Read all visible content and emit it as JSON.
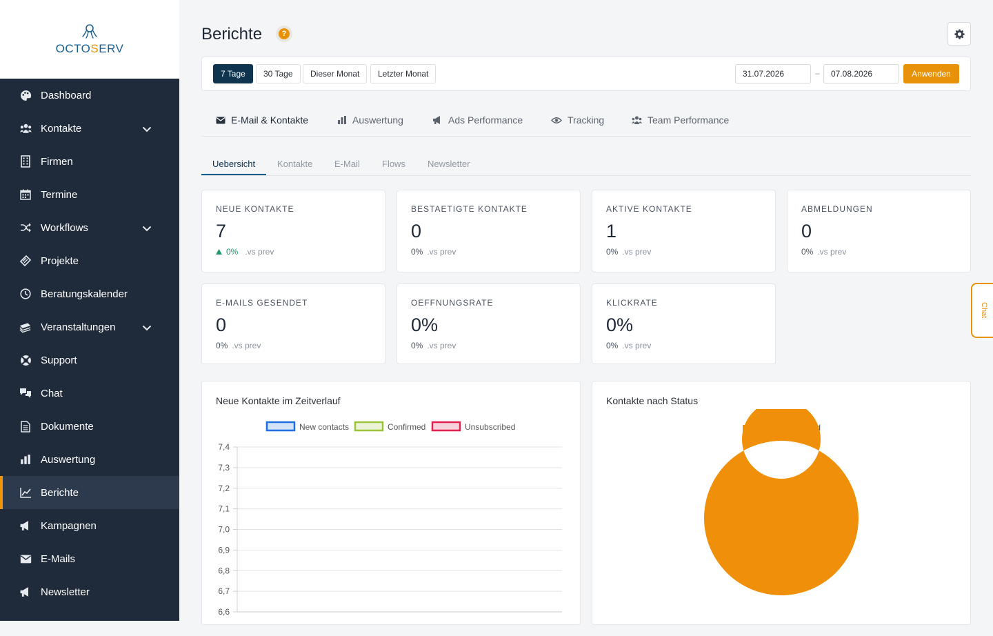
{
  "brand": {
    "logo_main": "OCTO",
    "logo_accent": "S",
    "logo_rest": "ERV",
    "primary": "#1a5f8f",
    "accent": "#e8920a"
  },
  "sidebar": {
    "items": [
      {
        "label": "Dashboard",
        "icon": "palette-icon"
      },
      {
        "label": "Kontakte",
        "icon": "users-icon",
        "expandable": true
      },
      {
        "label": "Firmen",
        "icon": "building-icon"
      },
      {
        "label": "Termine",
        "icon": "calendar-icon"
      },
      {
        "label": "Workflows",
        "icon": "shuffle-icon",
        "expandable": true
      },
      {
        "label": "Projekte",
        "icon": "ticket-icon"
      },
      {
        "label": "Beratungskalender",
        "icon": "clock-icon"
      },
      {
        "label": "Veranstaltungen",
        "icon": "stacked-tickets-icon",
        "expandable": true
      },
      {
        "label": "Support",
        "icon": "lifebuoy-icon"
      },
      {
        "label": "Chat",
        "icon": "chat-icon"
      },
      {
        "label": "Dokumente",
        "icon": "document-icon"
      },
      {
        "label": "Auswertung",
        "icon": "bar-chart-icon"
      },
      {
        "label": "Berichte",
        "icon": "line-chart-icon",
        "active": true
      },
      {
        "label": "Kampagnen",
        "icon": "megaphone-icon"
      },
      {
        "label": "E-Mails",
        "icon": "envelope-icon"
      },
      {
        "label": "Newsletter",
        "icon": "megaphone-icon"
      }
    ]
  },
  "header": {
    "title": "Berichte",
    "help": "?"
  },
  "filters": {
    "ranges": [
      "7 Tage",
      "30 Tage",
      "Dieser Monat",
      "Letzter Monat"
    ],
    "active_range": "7 Tage",
    "date_from": "31.07.2026",
    "date_sep": "–",
    "date_to": "07.08.2026",
    "apply": "Anwenden"
  },
  "main_tabs": [
    {
      "label": "E-Mail & Kontakte",
      "icon": "envelope-icon",
      "active": true
    },
    {
      "label": "Auswertung",
      "icon": "bar-chart-icon"
    },
    {
      "label": "Ads Performance",
      "icon": "megaphone-icon"
    },
    {
      "label": "Tracking",
      "icon": "eye-icon"
    },
    {
      "label": "Team Performance",
      "icon": "users-icon"
    }
  ],
  "sub_tabs": [
    {
      "label": "Uebersicht",
      "active": true
    },
    {
      "label": "Kontakte"
    },
    {
      "label": "E-Mail"
    },
    {
      "label": "Flows"
    },
    {
      "label": "Newsletter"
    }
  ],
  "kpis": [
    {
      "label": "NEUE KONTAKTE",
      "value": "7",
      "delta": "0%",
      "vs": ".vs prev",
      "trend": "up"
    },
    {
      "label": "BESTAETIGTE KONTAKTE",
      "value": "0",
      "delta": "0%",
      "vs": ".vs prev"
    },
    {
      "label": "AKTIVE KONTAKTE",
      "value": "1",
      "delta": "0%",
      "vs": ".vs prev"
    },
    {
      "label": "ABMELDUNGEN",
      "value": "0",
      "delta": "0%",
      "vs": ".vs prev"
    },
    {
      "label": "E-MAILS GESENDET",
      "value": "0",
      "delta": "0%",
      "vs": ".vs prev"
    },
    {
      "label": "OEFFNUNGSRATE",
      "value": "0%",
      "delta": "0%",
      "vs": ".vs prev"
    },
    {
      "label": "KLICKRATE",
      "value": "0%",
      "delta": "0%",
      "vs": ".vs prev"
    }
  ],
  "chat_tab": "Chat",
  "chart_data": [
    {
      "type": "line",
      "title": "Neue Kontakte im Zeitverlauf",
      "series": [
        {
          "name": "New contacts",
          "color": "#1e6fe0",
          "values": []
        },
        {
          "name": "Confirmed",
          "color": "#9ac43a",
          "values": []
        },
        {
          "name": "Unsubscribed",
          "color": "#e0234e",
          "values": []
        }
      ],
      "y_ticks": [
        "7,4",
        "7,3",
        "7,2",
        "7,1",
        "7,0",
        "6,9",
        "6,8",
        "6,7",
        "6,6"
      ],
      "ylim": [
        6.6,
        7.4
      ],
      "grid": true,
      "legend": "top"
    },
    {
      "type": "pie",
      "title": "Kontakte nach Status",
      "labels": [
        "Unconfirmed"
      ],
      "values": [
        1
      ],
      "colors": [
        "#f0900a"
      ],
      "donut": true,
      "legend": "top"
    }
  ]
}
